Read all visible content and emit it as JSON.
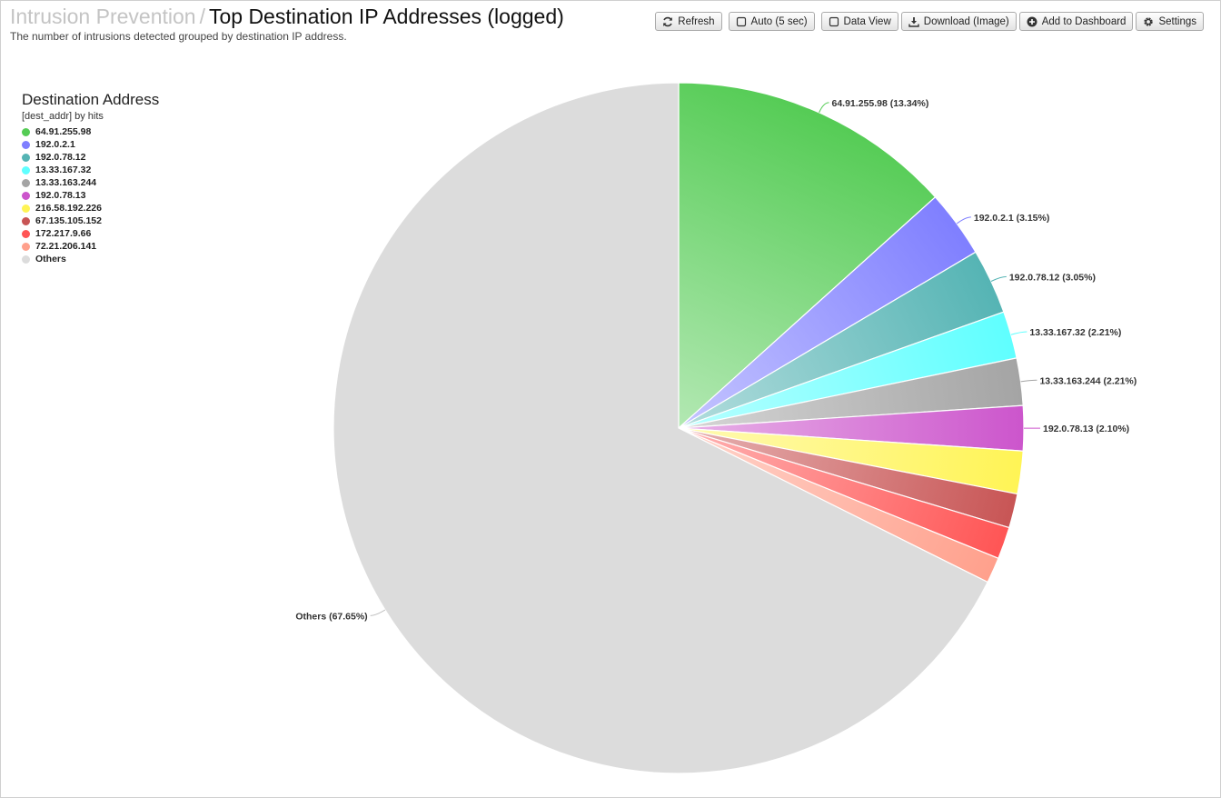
{
  "header": {
    "breadcrumb": "Intrusion Prevention",
    "separator": "/",
    "title": "Top Destination IP Addresses (logged)",
    "subtitle": "The number of intrusions detected grouped by destination IP address."
  },
  "toolbar": {
    "refresh": "Refresh",
    "auto": "Auto (5 sec)",
    "data_view": "Data View",
    "download": "Download (Image)",
    "add_dashboard": "Add to Dashboard",
    "settings": "Settings"
  },
  "chart_data": {
    "type": "pie",
    "legend": {
      "title": "Destination Address",
      "subtitle": "[dest_addr] by hits",
      "placement": "top-left"
    },
    "slices": [
      {
        "label": "64.91.255.98",
        "percent": 13.34,
        "color": "#55cc55"
      },
      {
        "label": "192.0.2.1",
        "percent": 3.15,
        "color": "#7f7fff"
      },
      {
        "label": "192.0.78.12",
        "percent": 3.05,
        "color": "#55b4b4"
      },
      {
        "label": "13.33.167.32",
        "percent": 2.21,
        "color": "#5fffff"
      },
      {
        "label": "13.33.163.244",
        "percent": 2.21,
        "color": "#a4a4a4"
      },
      {
        "label": "192.0.78.13",
        "percent": 2.1,
        "color": "#cc55cc"
      },
      {
        "label": "216.58.192.226",
        "percent": 2.0,
        "color": "#fff455"
      },
      {
        "label": "67.135.105.152",
        "percent": 1.6,
        "color": "#c85555"
      },
      {
        "label": "172.217.9.66",
        "percent": 1.5,
        "color": "#ff5555"
      },
      {
        "label": "72.21.206.141",
        "percent": 1.2,
        "color": "#ffa08c"
      },
      {
        "label": "Others",
        "percent": 67.65,
        "color": "#dcdcdc"
      }
    ],
    "labeled_slices": [
      "64.91.255.98",
      "192.0.2.1",
      "192.0.78.12",
      "13.33.167.32",
      "13.33.163.244",
      "192.0.78.13",
      "Others"
    ]
  }
}
